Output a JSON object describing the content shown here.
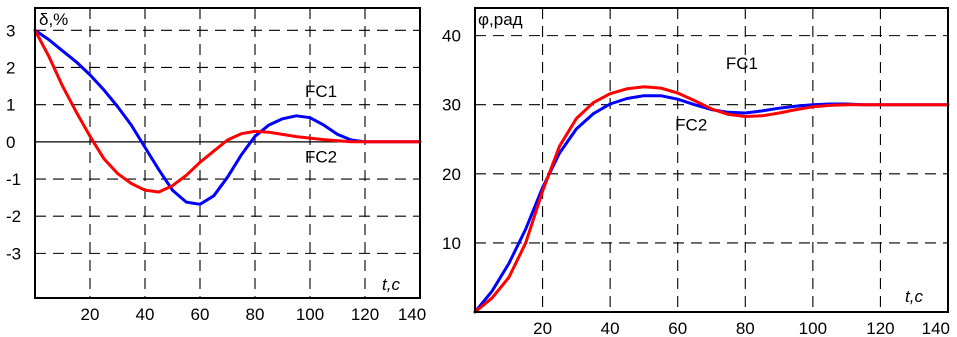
{
  "chart_data": [
    {
      "type": "line",
      "title": "",
      "ylabel": "δ,%",
      "xlabel": "t,c",
      "xlim": [
        0,
        140
      ],
      "ylim": [
        -4.2,
        3.6
      ],
      "x_ticks": [
        "20",
        "40",
        "60",
        "80",
        "100",
        "120",
        "140"
      ],
      "y_ticks": [
        "3",
        "2",
        "1",
        "0",
        "-1",
        "-2",
        "-3"
      ],
      "grid": true,
      "colors": {
        "FC1": "#0000ff",
        "FC2": "#ff0000"
      },
      "series": [
        {
          "name": "FC1",
          "x": [
            0,
            5,
            10,
            15,
            20,
            25,
            30,
            35,
            40,
            45,
            50,
            55,
            60,
            65,
            70,
            75,
            80,
            85,
            90,
            95,
            100,
            105,
            110,
            115,
            120,
            125,
            130,
            135,
            140
          ],
          "values": [
            3.0,
            2.75,
            2.45,
            2.15,
            1.8,
            1.4,
            0.95,
            0.45,
            -0.15,
            -0.75,
            -1.3,
            -1.62,
            -1.68,
            -1.45,
            -0.95,
            -0.35,
            0.15,
            0.45,
            0.62,
            0.7,
            0.65,
            0.45,
            0.2,
            0.05,
            0.0,
            0.0,
            0.0,
            0.0,
            0.0
          ]
        },
        {
          "name": "FC2",
          "x": [
            0,
            5,
            10,
            15,
            20,
            25,
            30,
            35,
            40,
            45,
            50,
            55,
            60,
            65,
            70,
            75,
            80,
            85,
            90,
            95,
            100,
            105,
            110,
            115,
            120,
            125,
            130,
            135,
            140
          ],
          "values": [
            3.0,
            2.3,
            1.5,
            0.8,
            0.15,
            -0.45,
            -0.85,
            -1.12,
            -1.3,
            -1.35,
            -1.18,
            -0.9,
            -0.55,
            -0.25,
            0.05,
            0.22,
            0.28,
            0.26,
            0.2,
            0.14,
            0.1,
            0.06,
            0.03,
            0.0,
            0.0,
            0.0,
            0.0,
            0.0,
            0.0
          ]
        }
      ],
      "annotations": [
        {
          "text": "FC1",
          "x": 104,
          "y": 1.2
        },
        {
          "text": "FC2",
          "x": 104,
          "y": -0.55
        }
      ]
    },
    {
      "type": "line",
      "title": "",
      "ylabel": "φ,рад",
      "xlabel": "t,c",
      "xlim": [
        0,
        140
      ],
      "ylim": [
        0,
        44
      ],
      "x_ticks": [
        "20",
        "40",
        "60",
        "80",
        "100",
        "120",
        "140"
      ],
      "y_ticks": [
        "40",
        "30",
        "20",
        "10"
      ],
      "grid": true,
      "colors": {
        "FC1": "#0000ff",
        "FC2": "#ff0000"
      },
      "series": [
        {
          "name": "FC1",
          "x": [
            0,
            5,
            10,
            15,
            20,
            25,
            30,
            35,
            40,
            45,
            50,
            55,
            60,
            65,
            70,
            75,
            80,
            85,
            90,
            95,
            100,
            105,
            110,
            115,
            120,
            125,
            130,
            135,
            140
          ],
          "values": [
            0,
            3,
            7,
            12,
            18,
            23,
            26.5,
            28.7,
            30.1,
            30.9,
            31.3,
            31.3,
            30.8,
            30.0,
            29.3,
            28.9,
            28.8,
            29.1,
            29.5,
            29.8,
            30.0,
            30.1,
            30.1,
            30.0,
            30.0,
            30.0,
            30.0,
            30.0,
            30.0
          ]
        },
        {
          "name": "FC2",
          "x": [
            0,
            5,
            10,
            15,
            20,
            25,
            30,
            35,
            40,
            45,
            50,
            55,
            60,
            65,
            70,
            75,
            80,
            85,
            90,
            95,
            100,
            105,
            110,
            115,
            120,
            125,
            130,
            135,
            140
          ],
          "values": [
            0,
            2,
            5,
            10,
            17.5,
            24,
            28,
            30.3,
            31.6,
            32.3,
            32.6,
            32.4,
            31.7,
            30.6,
            29.4,
            28.6,
            28.3,
            28.4,
            28.8,
            29.3,
            29.7,
            29.9,
            30.0,
            30.0,
            30.0,
            30.0,
            30.0,
            30.0,
            30.0
          ]
        }
      ],
      "annotations": [
        {
          "text": "FC1",
          "x": 79,
          "y": 35.2
        },
        {
          "text": "FC2",
          "x": 64,
          "y": 26.3
        }
      ]
    }
  ]
}
